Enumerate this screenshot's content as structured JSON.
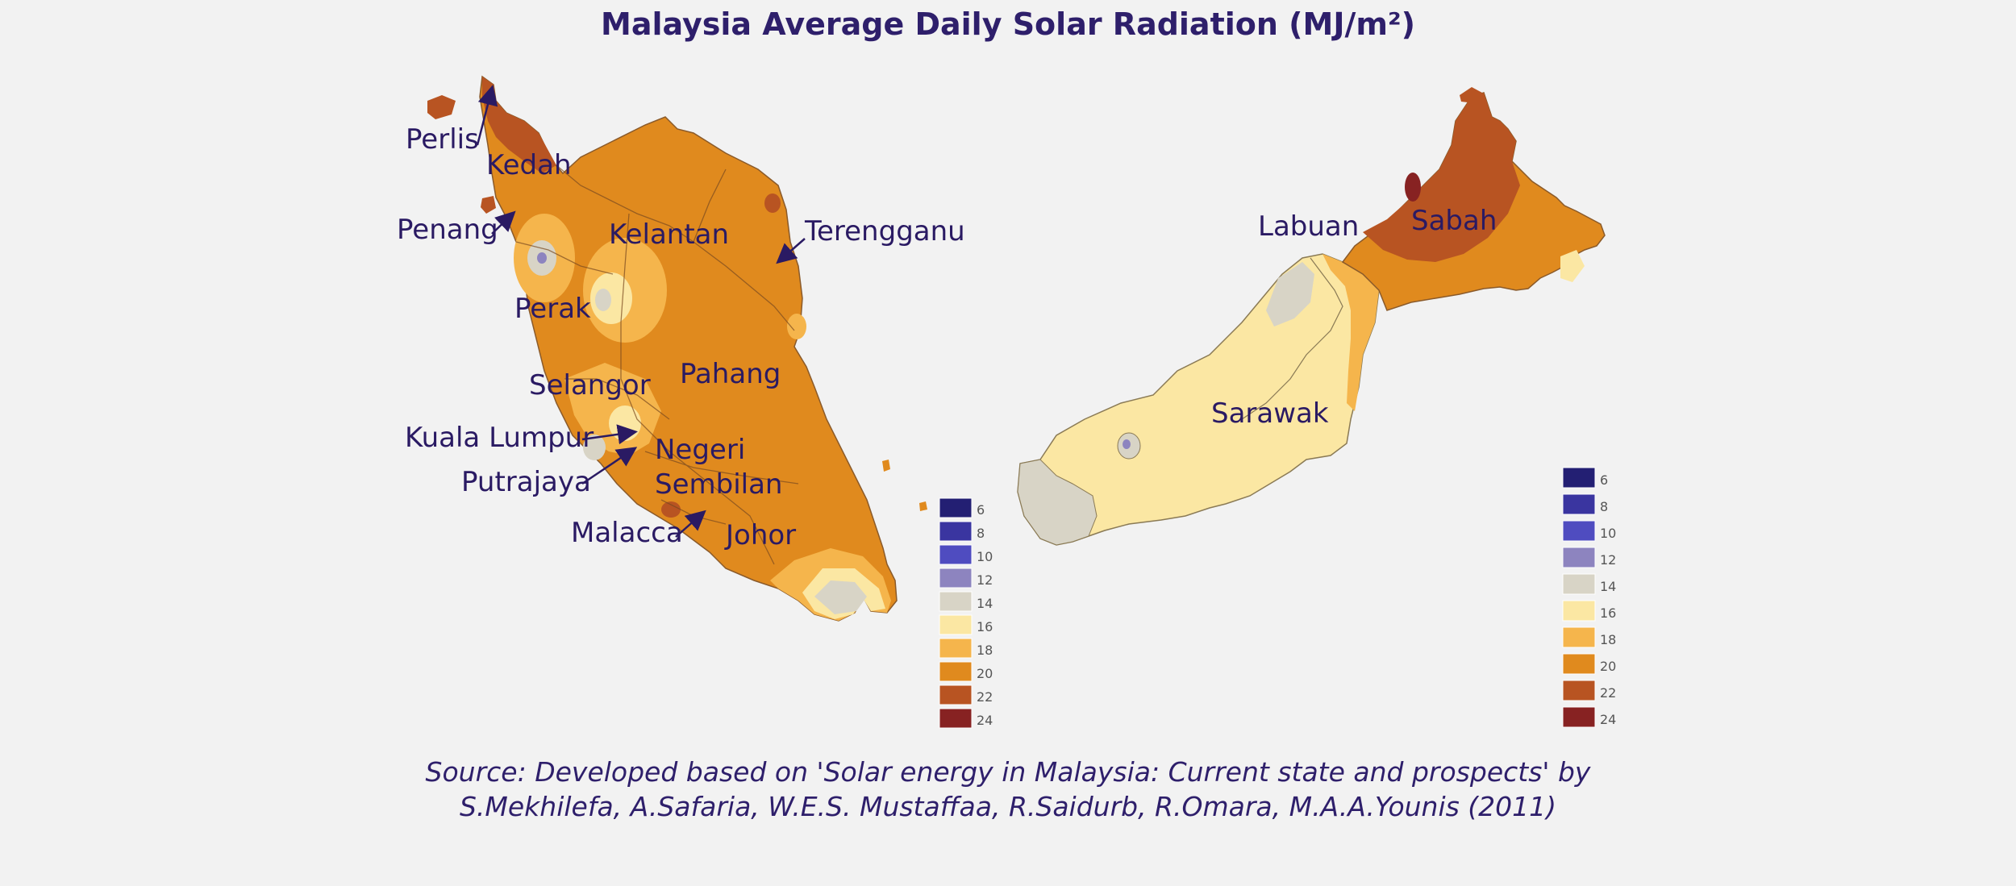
{
  "title": "Malaysia Average Daily Solar Radiation (MJ/m²)",
  "labels": {
    "perlis": "Perlis",
    "kedah": "Kedah",
    "penang": "Penang",
    "kelantan": "Kelantan",
    "terengganu": "Terengganu",
    "perak": "Perak",
    "selangor": "Selangor",
    "pahang": "Pahang",
    "kuala_lumpur": "Kuala Lumpur",
    "putrajaya": "Putrajaya",
    "negeri": "Negeri",
    "sembilan": "Sembilan",
    "malacca": "Malacca",
    "johor": "Johor",
    "labuan": "Labuan",
    "sabah": "Sabah",
    "sarawak": "Sarawak"
  },
  "legend": {
    "values": [
      "6",
      "8",
      "10",
      "12",
      "14",
      "16",
      "18",
      "20",
      "22",
      "24"
    ],
    "colors": [
      "#231f73",
      "#3a35a0",
      "#4f4cc0",
      "#8d84bf",
      "#d8d4c6",
      "#fbe7a3",
      "#f5b54c",
      "#e08a1e",
      "#b85422",
      "#872222"
    ]
  },
  "source": {
    "line1": "Source: Developed based on 'Solar energy in Malaysia: Current state and prospects' by",
    "line2": "S.Mekhilefa, A.Safaria, W.E.S. Mustaffaa, R.Saidurb, R.Omara, M.A.A.Younis (2011)"
  }
}
